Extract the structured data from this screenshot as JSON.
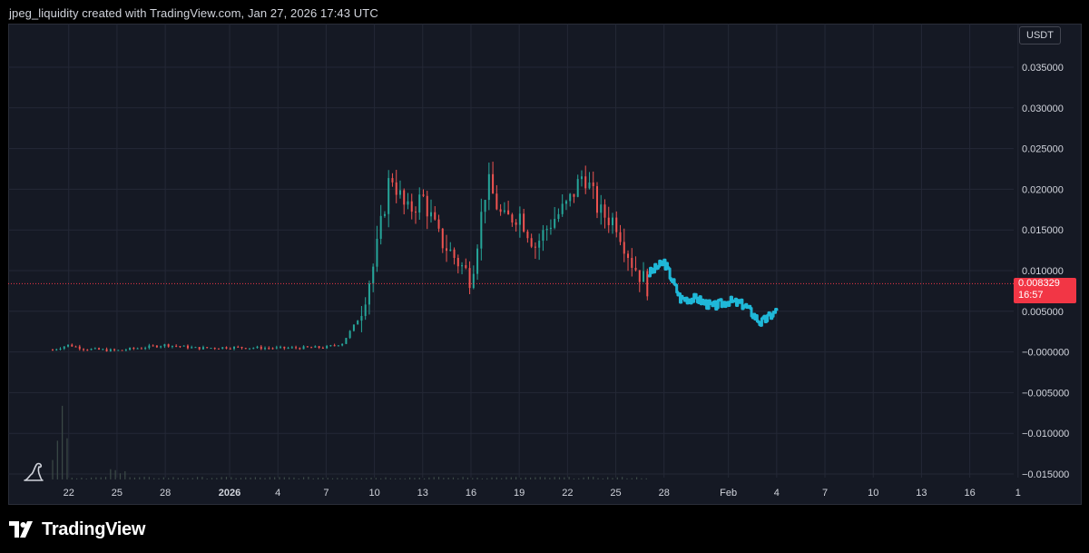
{
  "header": {
    "text": "jpeg_liquidity created with TradingView.com, Jan 27, 2026 17:43 UTC"
  },
  "currency_label": "USDT",
  "price_tag": {
    "price": "0.008329",
    "countdown": "16:57"
  },
  "brand": {
    "name": "TradingView"
  },
  "colors": {
    "up": "#26a69a",
    "down": "#ef5350",
    "projection": "#1fb8d8",
    "price_line": "#f23645",
    "background": "#151924",
    "grid": "#242836"
  },
  "icons": {
    "logo": "tradingview-logo-icon",
    "watermark": "dinosaur-icon"
  },
  "chart_data": {
    "type": "candlestick",
    "title": "",
    "xlabel": "",
    "ylabel": "",
    "y_ticks": [
      "0.035000",
      "0.030000",
      "0.025000",
      "0.020000",
      "0.015000",
      "0.010000",
      "0.005000",
      "−0.000000",
      "−0.005000",
      "−0.010000",
      "−0.015000"
    ],
    "x_ticks": [
      "22",
      "25",
      "28",
      "2026",
      "4",
      "7",
      "10",
      "13",
      "16",
      "19",
      "22",
      "25",
      "28",
      "Feb",
      "4",
      "7",
      "10",
      "13",
      "16",
      "1"
    ],
    "ylim": [
      -0.016,
      0.037
    ],
    "current_price": 0.008329,
    "price_path": {
      "x": [
        "Dec 21",
        "Dec 22",
        "Dec 23",
        "Dec 25",
        "Dec 28",
        "Dec 30",
        "Jan 1",
        "Jan 4",
        "Jan 7",
        "Jan 8",
        "Jan 9",
        "Jan 10",
        "Jan 11",
        "Jan 12",
        "Jan 13",
        "Jan 14",
        "Jan 16",
        "Jan 17",
        "Jan 18",
        "Jan 19",
        "Jan 20",
        "Jan 21",
        "Jan 22",
        "Jan 23",
        "Jan 24",
        "Jan 25",
        "Jan 26",
        "Jan 27"
      ],
      "y": [
        0.0002,
        0.0008,
        0.0003,
        0.0001,
        0.0008,
        0.0004,
        0.0005,
        0.0004,
        0.0005,
        0.001,
        0.004,
        0.011,
        0.022,
        0.017,
        0.019,
        0.014,
        0.009,
        0.021,
        0.016,
        0.017,
        0.013,
        0.016,
        0.018,
        0.022,
        0.017,
        0.016,
        0.011,
        0.008
      ]
    },
    "projection": {
      "name": "",
      "x": [
        "Jan 27",
        "Jan 28",
        "Jan 29",
        "Jan 30",
        "Jan 31",
        "Feb 1",
        "Feb 2",
        "Feb 3",
        "Feb 4"
      ],
      "y": [
        0.0095,
        0.011,
        0.0065,
        0.0065,
        0.0055,
        0.0062,
        0.0057,
        0.0035,
        0.005
      ]
    },
    "volume": {
      "note": "",
      "values": []
    }
  }
}
